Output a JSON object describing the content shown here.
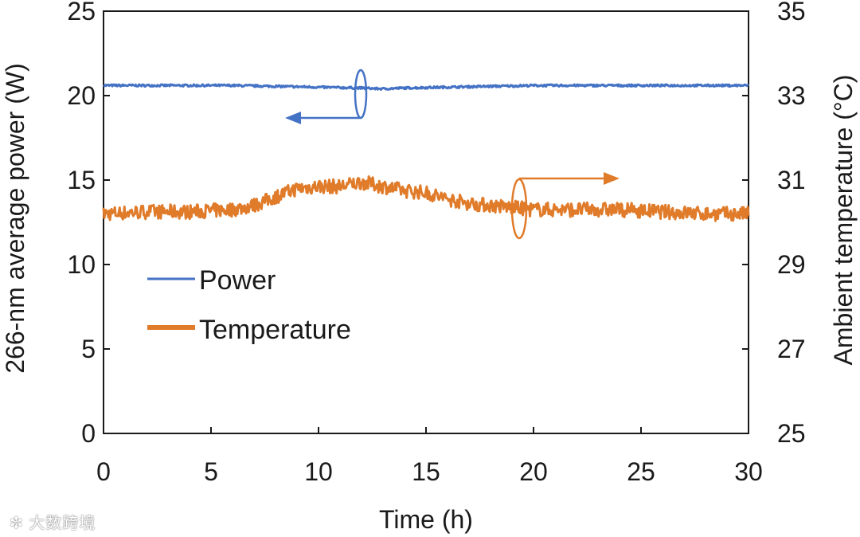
{
  "chart_data": {
    "type": "line",
    "title": "",
    "xlabel": "Time (h)",
    "ylabel": "266-nm average power (W)",
    "y2label": "Ambient temperature (°C)",
    "xlim": [
      0,
      30
    ],
    "ylim": [
      0,
      25
    ],
    "y2lim": [
      25,
      35
    ],
    "x_ticks": [
      0,
      5,
      10,
      15,
      20,
      25,
      30
    ],
    "y_ticks": [
      0,
      5,
      10,
      15,
      20,
      25
    ],
    "y2_ticks": [
      25,
      27,
      29,
      31,
      33,
      35
    ],
    "grid": false,
    "legend_position": "center-left",
    "series": [
      {
        "name": "Power",
        "axis": "left",
        "color": "#4472C4",
        "x": [
          0,
          2,
          4,
          6,
          8,
          10,
          12,
          13,
          14,
          16,
          18,
          20,
          22,
          24,
          26,
          28,
          30
        ],
        "y": [
          20.6,
          20.6,
          20.6,
          20.6,
          20.55,
          20.5,
          20.45,
          20.4,
          20.45,
          20.5,
          20.55,
          20.6,
          20.6,
          20.6,
          20.6,
          20.6,
          20.6
        ]
      },
      {
        "name": "Temperature",
        "axis": "right",
        "color": "#E07B2A",
        "x": [
          0,
          2,
          4,
          6,
          7,
          8,
          9,
          10,
          11,
          12,
          13,
          14,
          15,
          16,
          17,
          18,
          19,
          20,
          22,
          24,
          26,
          28,
          30
        ],
        "y": [
          30.2,
          30.25,
          30.25,
          30.3,
          30.4,
          30.6,
          30.8,
          30.85,
          30.85,
          30.95,
          30.85,
          30.75,
          30.7,
          30.55,
          30.45,
          30.4,
          30.35,
          30.3,
          30.3,
          30.3,
          30.25,
          30.2,
          30.2
        ]
      }
    ],
    "annotations": [
      {
        "type": "arrow",
        "series": "Power",
        "direction": "left",
        "meaning": "refers to left axis"
      },
      {
        "type": "arrow",
        "series": "Temperature",
        "direction": "right",
        "meaning": "refers to right axis"
      }
    ]
  },
  "watermark": "大数跨境"
}
